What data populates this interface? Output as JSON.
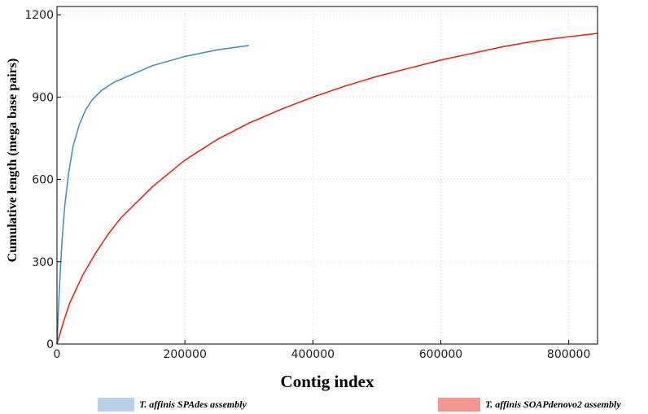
{
  "chart_data": {
    "type": "line",
    "xlabel": "Contig index",
    "ylabel": "Cumulative length (mega base pairs)",
    "xlim": [
      0,
      845000
    ],
    "ylim": [
      0,
      1230
    ],
    "x_ticks": [
      0,
      200000,
      400000,
      600000,
      800000
    ],
    "y_ticks": [
      0,
      300,
      600,
      900,
      1200
    ],
    "x_tick_labels": [
      "0",
      "200000",
      "400000",
      "600000",
      "800000"
    ],
    "y_tick_labels": [
      "0",
      "300",
      "600",
      "900",
      "1200"
    ],
    "grid": true,
    "legend_position": "bottom",
    "series": [
      {
        "name": "T. affinis SPAdes assembly",
        "color": "#4a90c8",
        "legend_color": "#b8d0ea",
        "points": [
          [
            0,
            0
          ],
          [
            1000,
            50
          ],
          [
            2000,
            110
          ],
          [
            3000,
            165
          ],
          [
            5000,
            260
          ],
          [
            8000,
            380
          ],
          [
            12000,
            500
          ],
          [
            18000,
            620
          ],
          [
            25000,
            720
          ],
          [
            35000,
            800
          ],
          [
            45000,
            855
          ],
          [
            55000,
            890
          ],
          [
            70000,
            925
          ],
          [
            90000,
            955
          ],
          [
            110000,
            975
          ],
          [
            150000,
            1015
          ],
          [
            200000,
            1048
          ],
          [
            250000,
            1072
          ],
          [
            300000,
            1088
          ]
        ]
      },
      {
        "name": "T. affinis SOAPdenovo2 assembly",
        "color": "#e8291c",
        "legend_color": "#f59690",
        "points": [
          [
            0,
            0
          ],
          [
            5000,
            40
          ],
          [
            10000,
            80
          ],
          [
            20000,
            150
          ],
          [
            40000,
            250
          ],
          [
            60000,
            330
          ],
          [
            80000,
            400
          ],
          [
            100000,
            460
          ],
          [
            150000,
            575
          ],
          [
            200000,
            670
          ],
          [
            250000,
            745
          ],
          [
            300000,
            805
          ],
          [
            350000,
            855
          ],
          [
            400000,
            900
          ],
          [
            450000,
            940
          ],
          [
            500000,
            975
          ],
          [
            550000,
            1005
          ],
          [
            600000,
            1035
          ],
          [
            650000,
            1060
          ],
          [
            700000,
            1085
          ],
          [
            750000,
            1105
          ],
          [
            800000,
            1120
          ],
          [
            845000,
            1132
          ]
        ]
      }
    ]
  }
}
